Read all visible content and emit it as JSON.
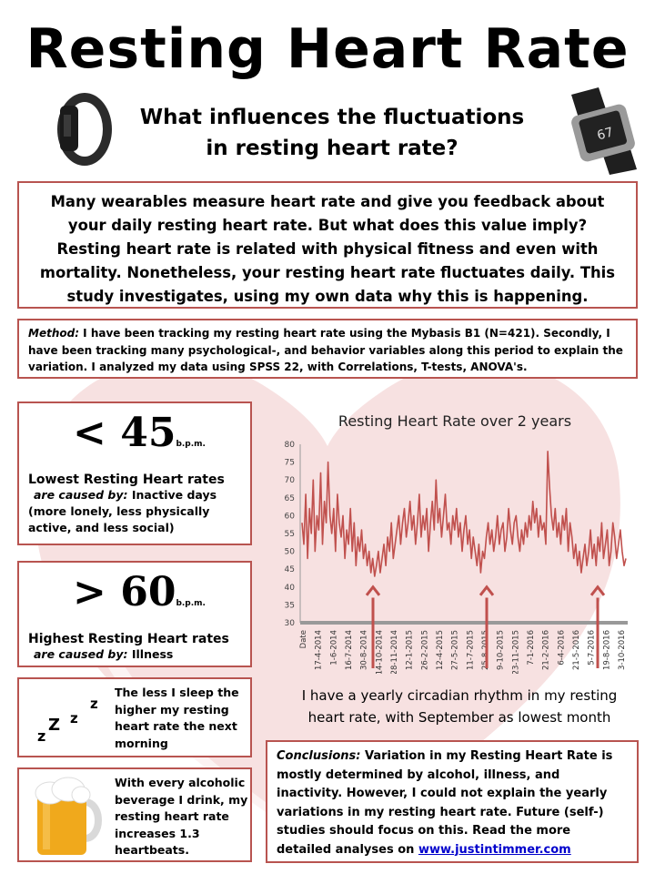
{
  "header": {
    "title": "Resting Heart Rate",
    "subtitle_line1": "What influences the fluctuations",
    "subtitle_line2": "in resting heart rate?"
  },
  "intro": {
    "text": "Many wearables measure heart rate and give you feedback about your daily resting heart rate. But what does this value imply? Resting heart rate is related with physical fitness and even with mortality. Nonetheless, your resting heart rate fluctuates daily. This study investigates, using my own data why this is happening."
  },
  "method": {
    "label": "Method:",
    "text": " I have been tracking my resting heart rate using the Mybasis B1 (N=421). Secondly, I have been tracking many psychological-, and behavior variables along this period to explain the variation. I analyzed my data using SPSS 22, with Correlations, T-tests, ANOVA's."
  },
  "lowest": {
    "value": "< 45",
    "unit": "b.p.m.",
    "heading": "Lowest Resting Heart rates",
    "cause_label": "are caused by:",
    "cause_text": " Inactive days (more lonely, less physically active, and less social)"
  },
  "highest": {
    "value": "> 60",
    "unit": "b.p.m.",
    "heading": "Highest Resting Heart rates",
    "cause_label": "are caused by:",
    "cause_text": " Illness"
  },
  "sleep": {
    "text": "The less I sleep the higher my resting heart rate the next morning",
    "icon": "zzz-sleep-icon"
  },
  "alcohol": {
    "text": "With every alcoholic beverage I drink, my resting heart rate increases 1.3 heartbeats.",
    "icon": "beer-mug-icon"
  },
  "caption": {
    "line1": "I have a yearly circadian rhythm in my resting",
    "line2": "heart rate, with September as lowest month"
  },
  "conclusion": {
    "label": "Conclusions:",
    "text": " Variation in my Resting Heart Rate is mostly determined by alcohol, illness, and inactivity. However, I could not explain the yearly variations in my resting heart rate. Future (self-) studies should focus on this. Read the more detailed analyses on ",
    "link": "www.justintimmer.com"
  },
  "colors": {
    "accent": "#b85450",
    "line": "#c0504d",
    "background_heart": "#f6dcdc"
  },
  "chart_data": {
    "type": "line",
    "title": "Resting Heart Rate over 2 years",
    "xlabel": "",
    "ylabel": "",
    "ylim": [
      30,
      80
    ],
    "yticks": [
      30,
      35,
      40,
      45,
      50,
      55,
      60,
      65,
      70,
      75,
      80
    ],
    "x_tick_labels": [
      "Date",
      "17-4-2014",
      "1-6-2014",
      "16-7-2014",
      "30-8-2014",
      "14-10-2014",
      "28-11-2014",
      "12-1-2015",
      "26-2-2015",
      "12-4-2015",
      "27-5-2015",
      "11-7-2015",
      "25-8-2015",
      "9-10-2015",
      "23-11-2015",
      "7-1-2016",
      "21-2-2016",
      "6-4-2016",
      "21-5-2016",
      "5-7-2016",
      "19-8-2016",
      "3-10-2016"
    ],
    "series": [
      {
        "values": [
          58,
          52,
          66,
          48,
          62,
          55,
          70,
          50,
          60,
          56,
          72,
          52,
          64,
          58,
          75,
          60,
          55,
          62,
          50,
          66,
          58,
          54,
          60,
          48,
          56,
          52,
          62,
          50,
          58,
          46,
          54,
          50,
          56,
          48,
          52,
          46,
          50,
          44,
          48,
          43,
          46,
          50,
          44,
          48,
          52,
          46,
          54,
          50,
          58,
          48,
          52,
          56,
          60,
          52,
          58,
          62,
          54,
          58,
          64,
          56,
          60,
          52,
          58,
          66,
          54,
          60,
          56,
          62,
          50,
          58,
          64,
          56,
          70,
          58,
          62,
          54,
          60,
          66,
          56,
          58,
          52,
          60,
          56,
          62,
          54,
          58,
          50,
          56,
          60,
          52,
          56,
          48,
          54,
          50,
          46,
          52,
          44,
          50,
          48,
          54,
          58,
          52,
          56,
          50,
          54,
          60,
          52,
          56,
          58,
          50,
          54,
          62,
          56,
          52,
          58,
          60,
          54,
          50,
          56,
          52,
          58,
          54,
          60,
          56,
          64,
          58,
          62,
          54,
          60,
          56,
          58,
          52,
          78,
          68,
          60,
          56,
          62,
          54,
          58,
          52,
          60,
          56,
          62,
          50,
          58,
          54,
          48,
          52,
          46,
          50,
          44,
          48,
          52,
          46,
          50,
          56,
          48,
          52,
          46,
          54,
          50,
          58,
          48,
          52,
          56,
          46,
          50,
          58,
          54,
          48,
          52,
          56,
          50,
          46,
          48
        ]
      }
    ],
    "annotations": [
      "arrow-sep-2014",
      "arrow-sep-2015",
      "arrow-sep-2016"
    ],
    "grid": false,
    "legend": "none"
  }
}
